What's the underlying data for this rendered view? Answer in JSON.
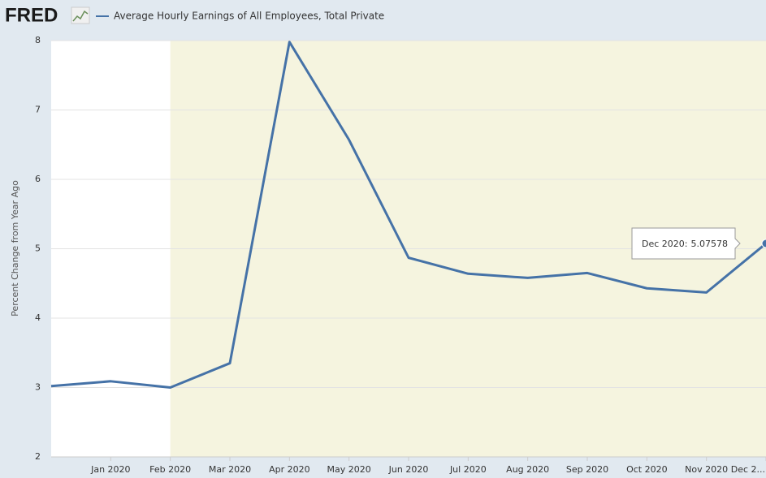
{
  "logo": "FRED",
  "chart_data": {
    "type": "line",
    "y_label": "Percent Change from Year Ago",
    "categories": [
      null,
      "Jan 2020",
      "Feb 2020",
      "Mar 2020",
      "Apr 2020",
      "May 2020",
      "Jun 2020",
      "Jul 2020",
      "Aug 2020",
      "Sep 2020",
      "Oct 2020",
      "Nov 2020",
      "Dec 2..."
    ],
    "series": [
      {
        "name": "Average Hourly Earnings of All Employees, Total Private",
        "color": "#4572a7",
        "values": [
          3.02,
          3.09,
          3.0,
          3.35,
          7.98,
          6.57,
          4.87,
          4.64,
          4.58,
          4.65,
          4.43,
          4.37,
          5.07578
        ]
      }
    ],
    "ylim": [
      2,
      8
    ],
    "yticks": [
      2,
      3,
      4,
      5,
      6,
      7,
      8
    ],
    "grid": true,
    "shaded_from": "Feb 2020",
    "shade_color": "#f5f4df",
    "tooltip": {
      "label": "Dec 2020:"
    }
  }
}
